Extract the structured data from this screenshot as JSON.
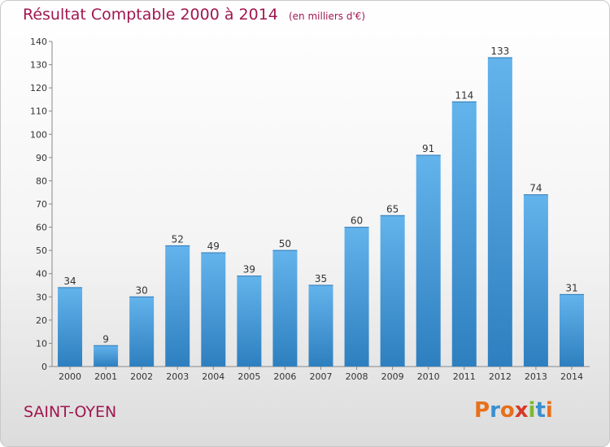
{
  "header": {
    "title": "Résultat Comptable 2000 à 2014",
    "subtitle": "(en milliers d'€)"
  },
  "footer": {
    "place": "SAINT-OYEN",
    "logo_text": "Proxiti",
    "logo_colors": [
      "#e7701b",
      "#3a8fd0",
      "#e7701b",
      "#d63a2a",
      "#7cb82f",
      "#3a8fd0",
      "#e7701b"
    ]
  },
  "colors": {
    "title": "#a0174f",
    "bar_top": "#63b3ec",
    "bar_bottom": "#2e7fbf"
  },
  "chart_data": {
    "type": "bar",
    "categories": [
      "2000",
      "2001",
      "2002",
      "2003",
      "2004",
      "2005",
      "2006",
      "2007",
      "2008",
      "2009",
      "2010",
      "2011",
      "2012",
      "2013",
      "2014"
    ],
    "values": [
      34,
      9,
      30,
      52,
      49,
      39,
      50,
      35,
      60,
      65,
      91,
      114,
      133,
      74,
      31
    ],
    "title": "Résultat Comptable 2000 à 2014",
    "subtitle": "(en milliers d'€)",
    "ylim": [
      0,
      140
    ],
    "yticks": [
      0,
      10,
      20,
      30,
      40,
      50,
      60,
      70,
      80,
      90,
      100,
      110,
      120,
      130,
      140
    ],
    "grid": false,
    "data_labels": true
  }
}
